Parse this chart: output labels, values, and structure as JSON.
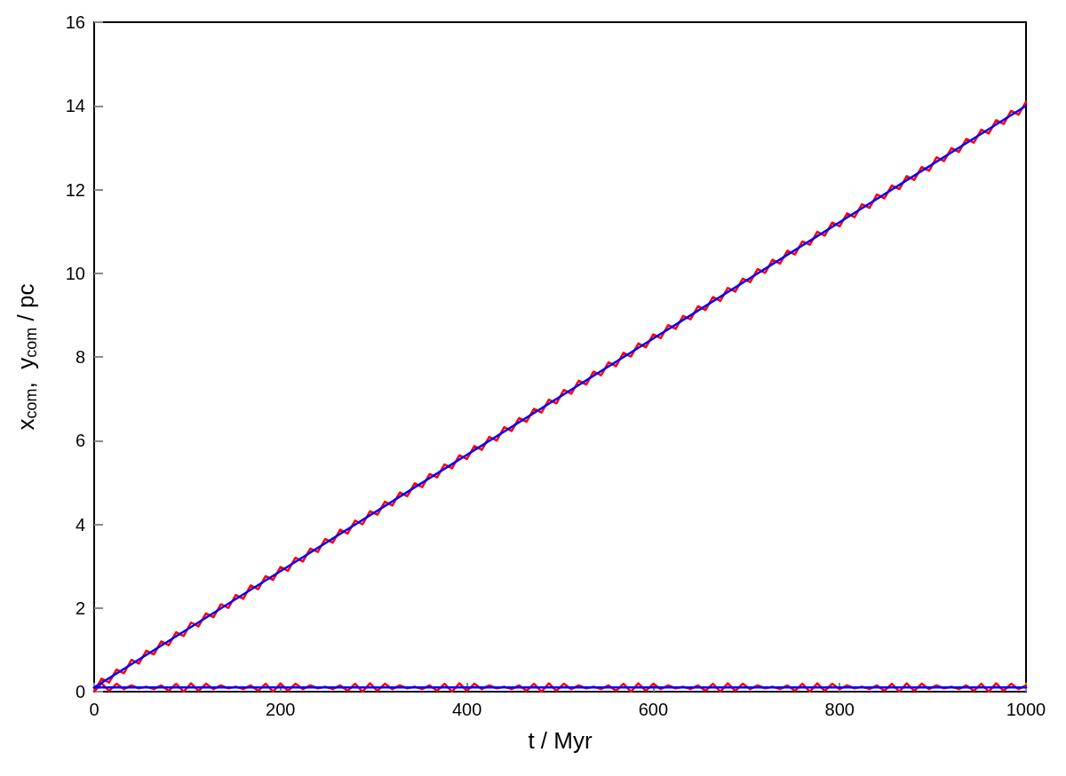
{
  "chart_data": {
    "type": "line",
    "xlabel": "t / Myr",
    "ylabel": "x$_{com}$,  y$_{com}$ / pc",
    "x": [
      0,
      8,
      16,
      24,
      32,
      40,
      48,
      56,
      64,
      72,
      80,
      88,
      96,
      104,
      112,
      120,
      128,
      136,
      144,
      152,
      160,
      168,
      176,
      184,
      192,
      200,
      208,
      216,
      224,
      232,
      240,
      248,
      256,
      264,
      272,
      280,
      288,
      296,
      304,
      312,
      320,
      328,
      336,
      344,
      352,
      360,
      368,
      376,
      384,
      392,
      400,
      408,
      416,
      424,
      432,
      440,
      448,
      456,
      464,
      472,
      480,
      488,
      496,
      504,
      512,
      520,
      528,
      536,
      544,
      552,
      560,
      568,
      576,
      584,
      592,
      600,
      608,
      616,
      624,
      632,
      640,
      648,
      656,
      664,
      672,
      680,
      688,
      696,
      704,
      712,
      720,
      728,
      736,
      744,
      752,
      760,
      768,
      776,
      784,
      792,
      800,
      808,
      816,
      824,
      832,
      840,
      848,
      856,
      864,
      872,
      880,
      888,
      896,
      904,
      912,
      920,
      928,
      936,
      944,
      952,
      960,
      968,
      976,
      984,
      992,
      1000
    ],
    "series": [
      {
        "color": "#ff0000",
        "values": [
          0,
          0.31,
          0.22,
          0.53,
          0.44,
          0.76,
          0.67,
          0.98,
          0.89,
          1.2,
          1.11,
          1.42,
          1.33,
          1.65,
          1.56,
          1.87,
          1.78,
          2.09,
          2.0,
          2.31,
          2.22,
          2.54,
          2.45,
          2.76,
          2.67,
          2.98,
          2.89,
          3.2,
          3.11,
          3.42,
          3.34,
          3.65,
          3.56,
          3.87,
          3.78,
          4.09,
          4.0,
          4.31,
          4.23,
          4.54,
          4.45,
          4.76,
          4.67,
          4.98,
          4.89,
          5.2,
          5.12,
          5.43,
          5.34,
          5.65,
          5.56,
          5.87,
          5.78,
          6.09,
          6.0,
          6.32,
          6.23,
          6.54,
          6.45,
          6.76,
          6.67,
          6.98,
          6.89,
          7.21,
          7.12,
          7.43,
          7.34,
          7.65,
          7.56,
          7.87,
          7.78,
          8.1,
          8.01,
          8.32,
          8.23,
          8.54,
          8.45,
          8.76,
          8.67,
          8.98,
          8.9,
          9.21,
          9.12,
          9.43,
          9.34,
          9.65,
          9.56,
          9.87,
          9.79,
          10.1,
          10.01,
          10.32,
          10.23,
          10.54,
          10.45,
          10.76,
          10.68,
          10.99,
          10.9,
          11.21,
          11.12,
          11.43,
          11.34,
          11.65,
          11.56,
          11.88,
          11.79,
          12.1,
          12.01,
          12.32,
          12.23,
          12.54,
          12.45,
          12.77,
          12.68,
          12.99,
          12.9,
          13.21,
          13.12,
          13.43,
          13.34,
          13.66,
          13.57,
          13.88,
          13.79,
          14.1
        ]
      },
      {
        "color": "#ff0000",
        "values": [
          0,
          0.2,
          0.02,
          0.19,
          0.06,
          0.15,
          0.08,
          0.12,
          0.06,
          0.15,
          0.02,
          0.19,
          0,
          0.2,
          0.02,
          0.19,
          0.06,
          0.15,
          0.08,
          0.12,
          0.06,
          0.15,
          0.02,
          0.19,
          0,
          0.2,
          0.02,
          0.19,
          0.06,
          0.15,
          0.08,
          0.12,
          0.06,
          0.15,
          0.02,
          0.19,
          0,
          0.2,
          0.02,
          0.19,
          0.06,
          0.15,
          0.08,
          0.12,
          0.06,
          0.15,
          0.02,
          0.19,
          0,
          0.2,
          0.02,
          0.19,
          0.06,
          0.15,
          0.08,
          0.12,
          0.06,
          0.15,
          0.02,
          0.19,
          0,
          0.2,
          0.02,
          0.19,
          0.06,
          0.15,
          0.08,
          0.12,
          0.06,
          0.15,
          0.02,
          0.19,
          0,
          0.2,
          0.02,
          0.19,
          0.06,
          0.15,
          0.08,
          0.12,
          0.06,
          0.15,
          0.02,
          0.19,
          0,
          0.2,
          0.02,
          0.19,
          0.06,
          0.15,
          0.08,
          0.12,
          0.06,
          0.15,
          0.02,
          0.19,
          0,
          0.2,
          0.02,
          0.19,
          0.06,
          0.15,
          0.08,
          0.12,
          0.06,
          0.15,
          0.02,
          0.19,
          0,
          0.2,
          0.02,
          0.19,
          0.06,
          0.15,
          0.08,
          0.12,
          0.06,
          0.15,
          0.02,
          0.19,
          0,
          0.2,
          0.02,
          0.19,
          0.06,
          0.15
        ]
      },
      {
        "color": "#0000ff",
        "x": [
          0,
          200,
          400,
          600,
          800,
          1000
        ],
        "values": [
          0.1,
          2.88,
          5.66,
          8.44,
          11.22,
          14
        ]
      },
      {
        "color": "#0000ff",
        "x": [
          0,
          200,
          400,
          600,
          800,
          1000
        ],
        "values": [
          0.1,
          0.1,
          0.1,
          0.1,
          0.1,
          0.1
        ]
      }
    ],
    "xlim": [
      0,
      1000
    ],
    "xticks": [
      0,
      200,
      400,
      600,
      800,
      1000
    ],
    "ylim": [
      0,
      16
    ],
    "yticks": [
      0,
      2,
      4,
      6,
      8,
      10,
      12,
      14,
      16
    ],
    "grid": false,
    "marker": "none",
    "line_style": "solid"
  }
}
